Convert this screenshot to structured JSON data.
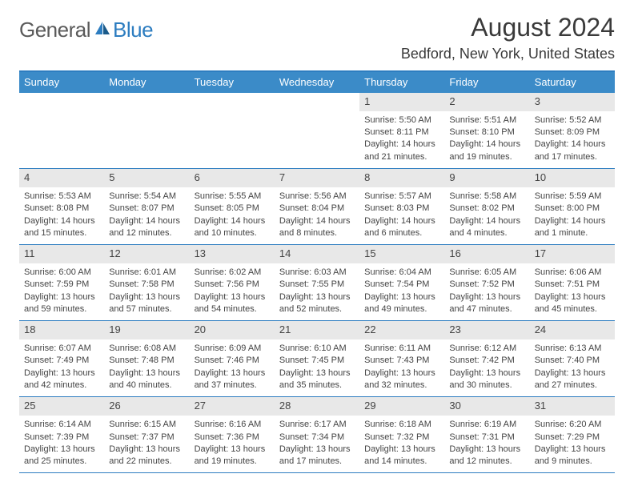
{
  "logo": {
    "part1": "General",
    "part2": "Blue"
  },
  "title": "August 2024",
  "subtitle": "Bedford, New York, United States",
  "day_names": [
    "Sunday",
    "Monday",
    "Tuesday",
    "Wednesday",
    "Thursday",
    "Friday",
    "Saturday"
  ],
  "colors": {
    "header_bg": "#3b8bc8",
    "accent": "#2d7dc0",
    "daynum_bg": "#e8e8e8",
    "text": "#333333",
    "logo_gray": "#5a5a5a"
  },
  "weeks": [
    [
      {
        "day": "",
        "sunrise": "",
        "sunset": "",
        "daylight1": "",
        "daylight2": ""
      },
      {
        "day": "",
        "sunrise": "",
        "sunset": "",
        "daylight1": "",
        "daylight2": ""
      },
      {
        "day": "",
        "sunrise": "",
        "sunset": "",
        "daylight1": "",
        "daylight2": ""
      },
      {
        "day": "",
        "sunrise": "",
        "sunset": "",
        "daylight1": "",
        "daylight2": ""
      },
      {
        "day": "1",
        "sunrise": "Sunrise: 5:50 AM",
        "sunset": "Sunset: 8:11 PM",
        "daylight1": "Daylight: 14 hours",
        "daylight2": "and 21 minutes."
      },
      {
        "day": "2",
        "sunrise": "Sunrise: 5:51 AM",
        "sunset": "Sunset: 8:10 PM",
        "daylight1": "Daylight: 14 hours",
        "daylight2": "and 19 minutes."
      },
      {
        "day": "3",
        "sunrise": "Sunrise: 5:52 AM",
        "sunset": "Sunset: 8:09 PM",
        "daylight1": "Daylight: 14 hours",
        "daylight2": "and 17 minutes."
      }
    ],
    [
      {
        "day": "4",
        "sunrise": "Sunrise: 5:53 AM",
        "sunset": "Sunset: 8:08 PM",
        "daylight1": "Daylight: 14 hours",
        "daylight2": "and 15 minutes."
      },
      {
        "day": "5",
        "sunrise": "Sunrise: 5:54 AM",
        "sunset": "Sunset: 8:07 PM",
        "daylight1": "Daylight: 14 hours",
        "daylight2": "and 12 minutes."
      },
      {
        "day": "6",
        "sunrise": "Sunrise: 5:55 AM",
        "sunset": "Sunset: 8:05 PM",
        "daylight1": "Daylight: 14 hours",
        "daylight2": "and 10 minutes."
      },
      {
        "day": "7",
        "sunrise": "Sunrise: 5:56 AM",
        "sunset": "Sunset: 8:04 PM",
        "daylight1": "Daylight: 14 hours",
        "daylight2": "and 8 minutes."
      },
      {
        "day": "8",
        "sunrise": "Sunrise: 5:57 AM",
        "sunset": "Sunset: 8:03 PM",
        "daylight1": "Daylight: 14 hours",
        "daylight2": "and 6 minutes."
      },
      {
        "day": "9",
        "sunrise": "Sunrise: 5:58 AM",
        "sunset": "Sunset: 8:02 PM",
        "daylight1": "Daylight: 14 hours",
        "daylight2": "and 4 minutes."
      },
      {
        "day": "10",
        "sunrise": "Sunrise: 5:59 AM",
        "sunset": "Sunset: 8:00 PM",
        "daylight1": "Daylight: 14 hours",
        "daylight2": "and 1 minute."
      }
    ],
    [
      {
        "day": "11",
        "sunrise": "Sunrise: 6:00 AM",
        "sunset": "Sunset: 7:59 PM",
        "daylight1": "Daylight: 13 hours",
        "daylight2": "and 59 minutes."
      },
      {
        "day": "12",
        "sunrise": "Sunrise: 6:01 AM",
        "sunset": "Sunset: 7:58 PM",
        "daylight1": "Daylight: 13 hours",
        "daylight2": "and 57 minutes."
      },
      {
        "day": "13",
        "sunrise": "Sunrise: 6:02 AM",
        "sunset": "Sunset: 7:56 PM",
        "daylight1": "Daylight: 13 hours",
        "daylight2": "and 54 minutes."
      },
      {
        "day": "14",
        "sunrise": "Sunrise: 6:03 AM",
        "sunset": "Sunset: 7:55 PM",
        "daylight1": "Daylight: 13 hours",
        "daylight2": "and 52 minutes."
      },
      {
        "day": "15",
        "sunrise": "Sunrise: 6:04 AM",
        "sunset": "Sunset: 7:54 PM",
        "daylight1": "Daylight: 13 hours",
        "daylight2": "and 49 minutes."
      },
      {
        "day": "16",
        "sunrise": "Sunrise: 6:05 AM",
        "sunset": "Sunset: 7:52 PM",
        "daylight1": "Daylight: 13 hours",
        "daylight2": "and 47 minutes."
      },
      {
        "day": "17",
        "sunrise": "Sunrise: 6:06 AM",
        "sunset": "Sunset: 7:51 PM",
        "daylight1": "Daylight: 13 hours",
        "daylight2": "and 45 minutes."
      }
    ],
    [
      {
        "day": "18",
        "sunrise": "Sunrise: 6:07 AM",
        "sunset": "Sunset: 7:49 PM",
        "daylight1": "Daylight: 13 hours",
        "daylight2": "and 42 minutes."
      },
      {
        "day": "19",
        "sunrise": "Sunrise: 6:08 AM",
        "sunset": "Sunset: 7:48 PM",
        "daylight1": "Daylight: 13 hours",
        "daylight2": "and 40 minutes."
      },
      {
        "day": "20",
        "sunrise": "Sunrise: 6:09 AM",
        "sunset": "Sunset: 7:46 PM",
        "daylight1": "Daylight: 13 hours",
        "daylight2": "and 37 minutes."
      },
      {
        "day": "21",
        "sunrise": "Sunrise: 6:10 AM",
        "sunset": "Sunset: 7:45 PM",
        "daylight1": "Daylight: 13 hours",
        "daylight2": "and 35 minutes."
      },
      {
        "day": "22",
        "sunrise": "Sunrise: 6:11 AM",
        "sunset": "Sunset: 7:43 PM",
        "daylight1": "Daylight: 13 hours",
        "daylight2": "and 32 minutes."
      },
      {
        "day": "23",
        "sunrise": "Sunrise: 6:12 AM",
        "sunset": "Sunset: 7:42 PM",
        "daylight1": "Daylight: 13 hours",
        "daylight2": "and 30 minutes."
      },
      {
        "day": "24",
        "sunrise": "Sunrise: 6:13 AM",
        "sunset": "Sunset: 7:40 PM",
        "daylight1": "Daylight: 13 hours",
        "daylight2": "and 27 minutes."
      }
    ],
    [
      {
        "day": "25",
        "sunrise": "Sunrise: 6:14 AM",
        "sunset": "Sunset: 7:39 PM",
        "daylight1": "Daylight: 13 hours",
        "daylight2": "and 25 minutes."
      },
      {
        "day": "26",
        "sunrise": "Sunrise: 6:15 AM",
        "sunset": "Sunset: 7:37 PM",
        "daylight1": "Daylight: 13 hours",
        "daylight2": "and 22 minutes."
      },
      {
        "day": "27",
        "sunrise": "Sunrise: 6:16 AM",
        "sunset": "Sunset: 7:36 PM",
        "daylight1": "Daylight: 13 hours",
        "daylight2": "and 19 minutes."
      },
      {
        "day": "28",
        "sunrise": "Sunrise: 6:17 AM",
        "sunset": "Sunset: 7:34 PM",
        "daylight1": "Daylight: 13 hours",
        "daylight2": "and 17 minutes."
      },
      {
        "day": "29",
        "sunrise": "Sunrise: 6:18 AM",
        "sunset": "Sunset: 7:32 PM",
        "daylight1": "Daylight: 13 hours",
        "daylight2": "and 14 minutes."
      },
      {
        "day": "30",
        "sunrise": "Sunrise: 6:19 AM",
        "sunset": "Sunset: 7:31 PM",
        "daylight1": "Daylight: 13 hours",
        "daylight2": "and 12 minutes."
      },
      {
        "day": "31",
        "sunrise": "Sunrise: 6:20 AM",
        "sunset": "Sunset: 7:29 PM",
        "daylight1": "Daylight: 13 hours",
        "daylight2": "and 9 minutes."
      }
    ]
  ]
}
